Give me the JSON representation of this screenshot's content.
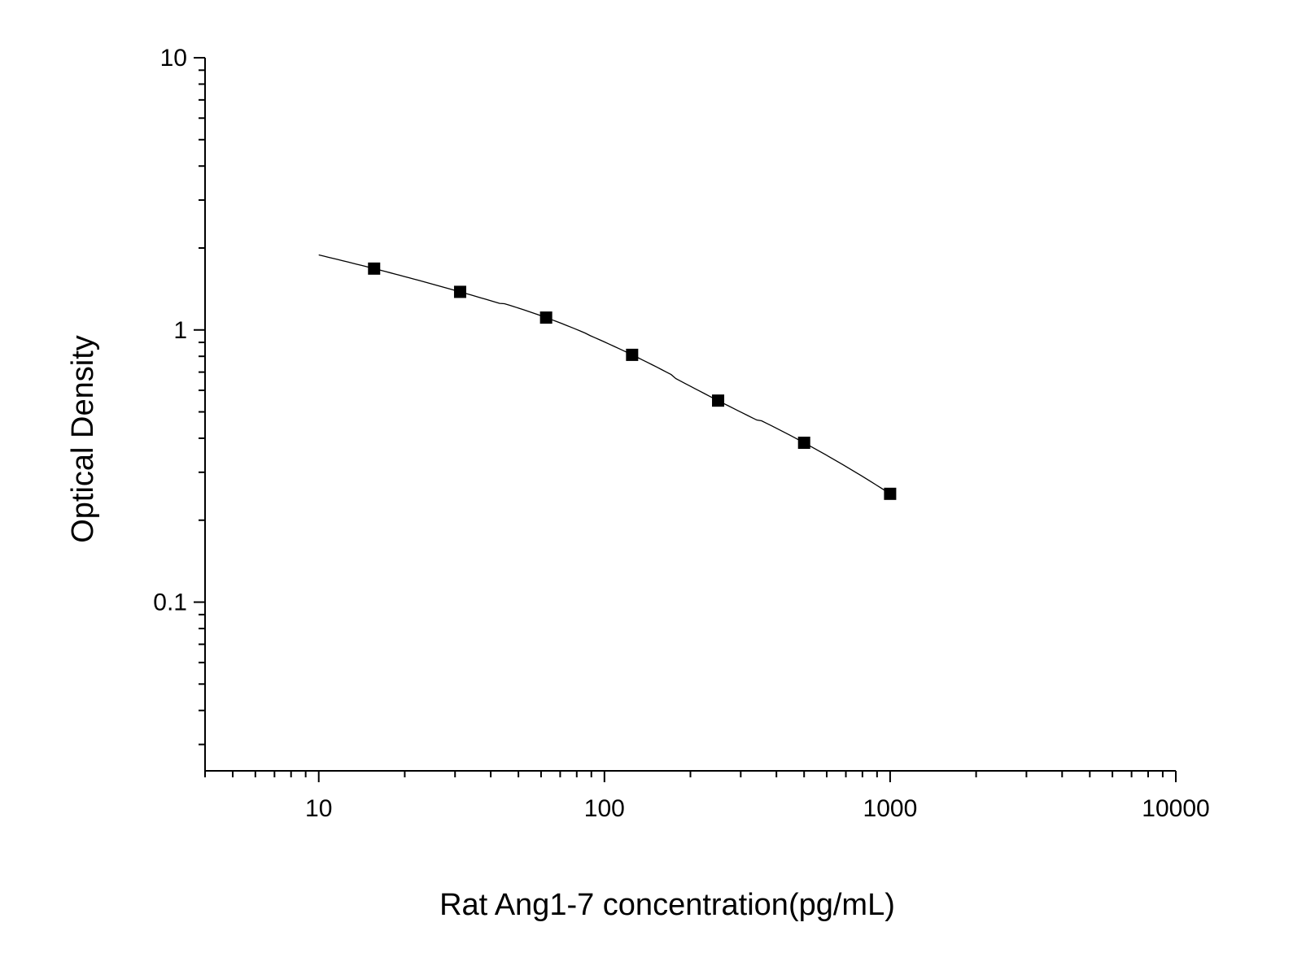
{
  "chart_data": {
    "type": "scatter",
    "title": "",
    "xlabel": "Rat Ang1-7 concentration(pg/mL)",
    "ylabel": "Optical Density",
    "x_scale": "log",
    "y_scale": "log",
    "xlim": [
      4,
      10000
    ],
    "ylim": [
      0.024,
      10
    ],
    "x_ticks": [
      {
        "value": 10,
        "label": "10"
      },
      {
        "value": 100,
        "label": "100"
      },
      {
        "value": 1000,
        "label": "1000"
      },
      {
        "value": 10000,
        "label": "10000"
      }
    ],
    "y_ticks": [
      {
        "value": 0.1,
        "label": "0.1"
      },
      {
        "value": 1,
        "label": "1"
      },
      {
        "value": 10,
        "label": "10"
      }
    ],
    "grid": false,
    "legend": "none",
    "series": [
      {
        "x": [
          15.625,
          31.25,
          62.5,
          125,
          250,
          500,
          1000
        ],
        "y": [
          1.68,
          1.38,
          1.11,
          0.81,
          0.55,
          0.385,
          0.25
        ],
        "marker": "square",
        "fit_curve": true,
        "fit_x_range": [
          10,
          1000
        ],
        "color": "#000000"
      }
    ]
  }
}
